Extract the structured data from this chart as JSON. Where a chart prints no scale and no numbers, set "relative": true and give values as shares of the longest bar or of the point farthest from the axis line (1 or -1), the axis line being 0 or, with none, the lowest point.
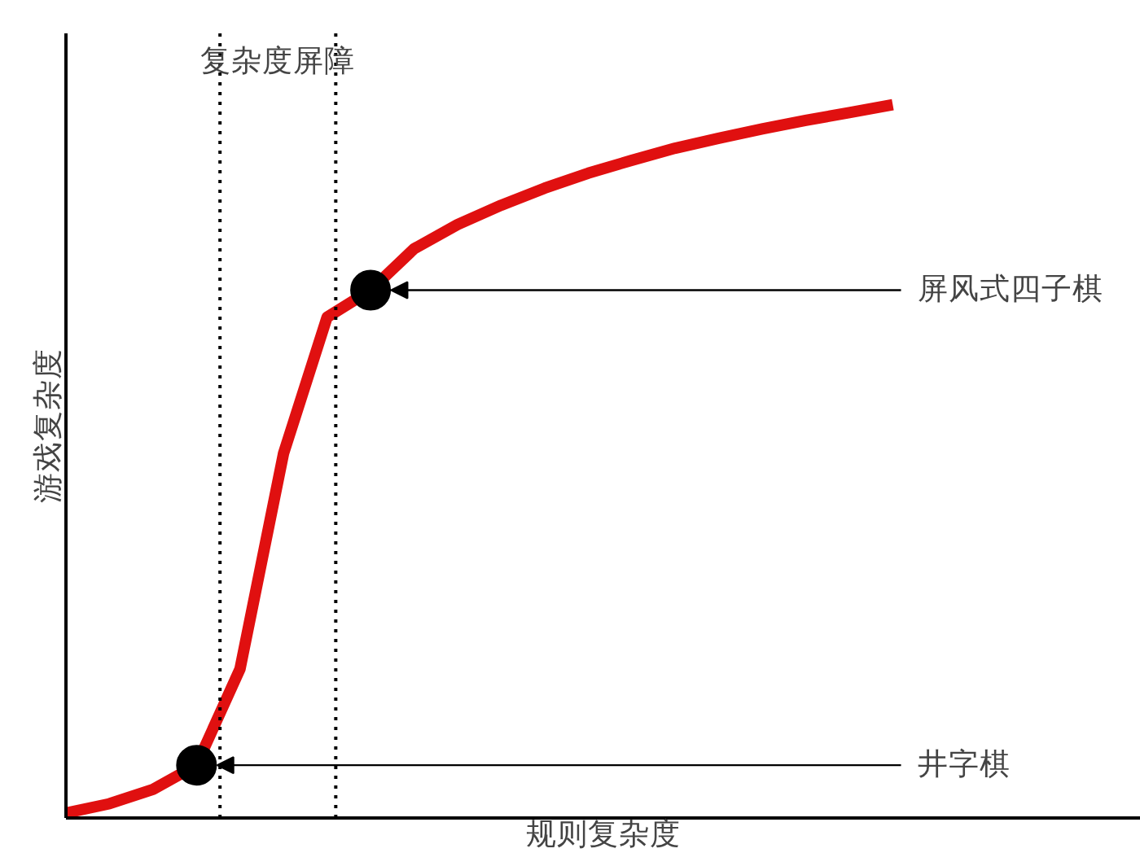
{
  "chart_data": {
    "type": "line",
    "relative": true,
    "xlabel": "规则复杂度",
    "ylabel": "游戏复杂度",
    "line_style": "solid",
    "categories": [
      null,
      null,
      null,
      null,
      null,
      null,
      null,
      null,
      null,
      null,
      null,
      null,
      null,
      null,
      null,
      null,
      null,
      null,
      null,
      null
    ],
    "series": [
      {
        "color": "#e01010",
        "values": [
          0.007,
          0.02,
          0.04,
          0.074,
          0.209,
          0.511,
          0.702,
          0.74,
          0.798,
          0.832,
          0.859,
          0.883,
          0.904,
          0.922,
          0.939,
          0.953,
          0.966,
          0.978,
          0.989,
          1
        ]
      }
    ],
    "annotations": [
      "复杂度屏障",
      "井字棋",
      "屏风式四子棋"
    ]
  }
}
